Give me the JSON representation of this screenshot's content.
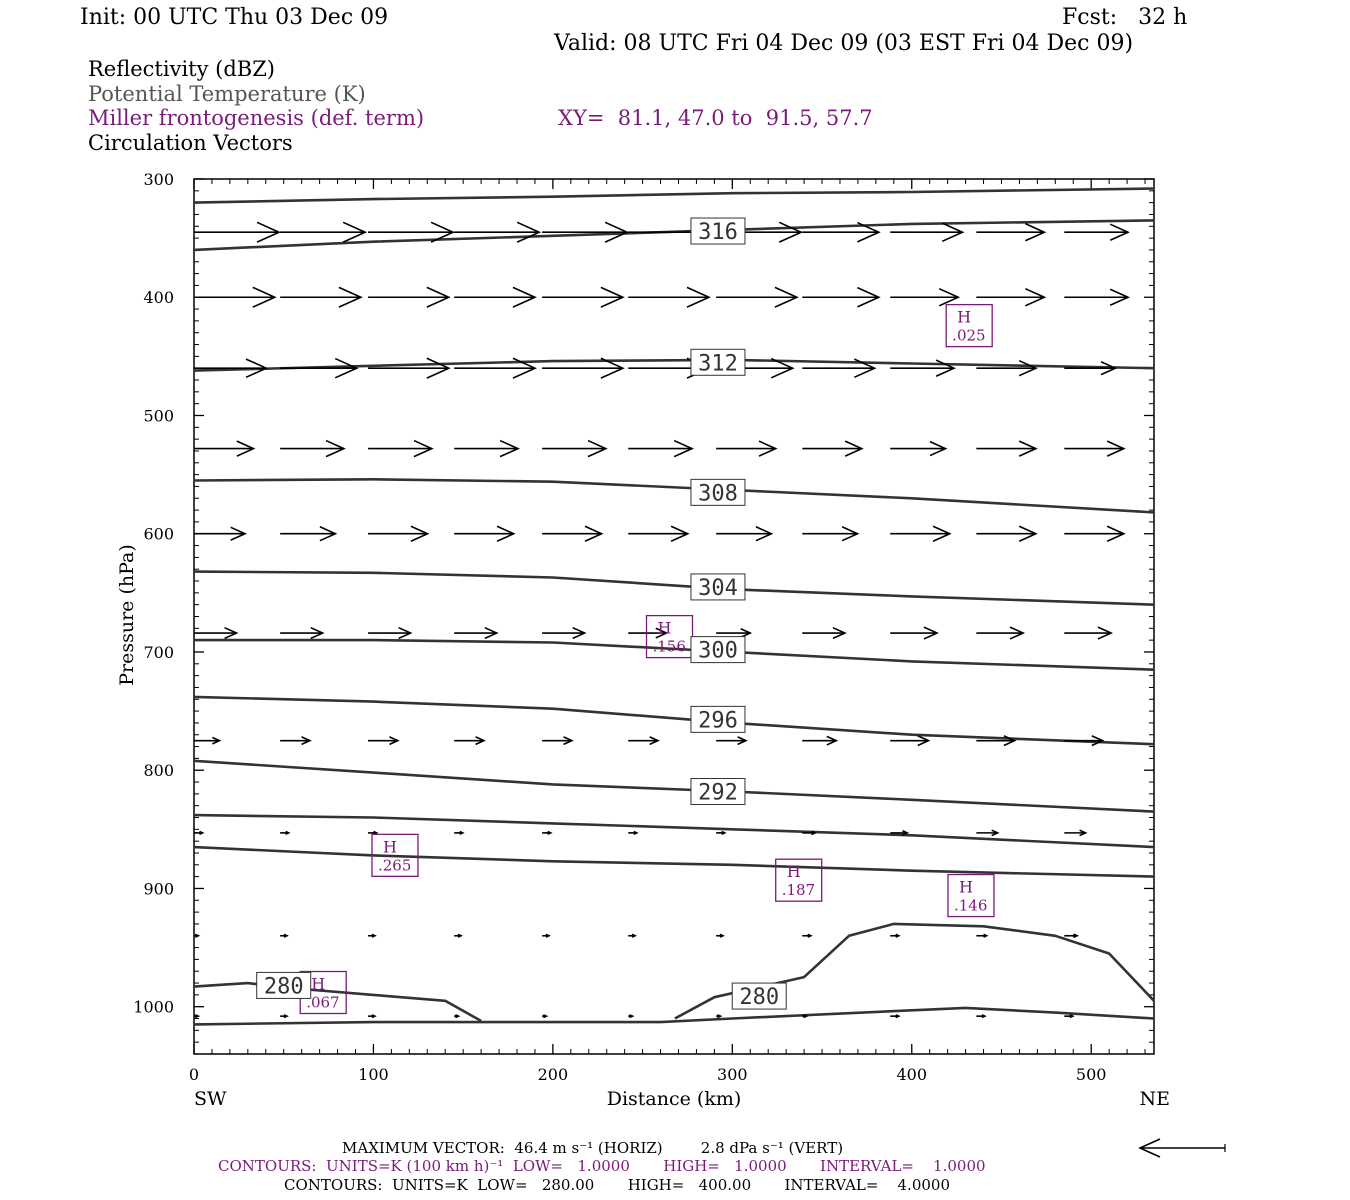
{
  "header": {
    "init": "Init: 00 UTC Thu 03 Dec 09",
    "fcst": "Fcst:   32 h",
    "valid": "Valid: 08 UTC Fri 04 Dec 09 (03 EST Fri 04 Dec 09)"
  },
  "legend": {
    "reflectivity": "Reflectivity (dBZ)",
    "theta": "Potential Temperature (K)",
    "frontogenesis": "Miller frontogenesis (def. term)",
    "xy": "XY=  81.1, 47.0 to  91.5, 57.7",
    "vectors": "Circulation Vectors"
  },
  "colors": {
    "frontogenesis": "#7a1a7a",
    "theta": "#333333",
    "vectors": "#000000"
  },
  "footer": {
    "maxvec": "MAXIMUM VECTOR:  46.4 m s⁻¹ (HORIZ)        2.8 dPa s⁻¹ (VERT)",
    "contours1": "CONTOURS:  UNITS=K (100 km h)⁻¹  LOW=   1.0000       HIGH=   1.0000       INTERVAL=    1.0000",
    "contours2": "CONTOURS:  UNITS=K  LOW=   280.00       HIGH=   400.00       INTERVAL=    4.0000"
  },
  "chart_data": {
    "type": "line",
    "xlabel": "Distance (km)",
    "ylabel": "Pressure (hPa)",
    "xlim": [
      0,
      535
    ],
    "ylim": [
      1040,
      300
    ],
    "xticks": [
      0,
      100,
      200,
      300,
      400,
      500
    ],
    "yticks": [
      300,
      400,
      500,
      600,
      700,
      800,
      900,
      1000
    ],
    "x_ends": [
      "SW",
      "NE"
    ],
    "theta_contours": [
      {
        "level": "",
        "pts": [
          [
            0,
            320
          ],
          [
            100,
            317
          ],
          [
            200,
            315
          ],
          [
            300,
            312
          ],
          [
            400,
            311
          ],
          [
            535,
            308
          ]
        ]
      },
      {
        "level": "316",
        "label_at": [
          292,
          344
        ],
        "pts": [
          [
            0,
            360
          ],
          [
            100,
            353
          ],
          [
            200,
            348
          ],
          [
            300,
            343
          ],
          [
            400,
            338
          ],
          [
            535,
            335
          ]
        ]
      },
      {
        "level": "312",
        "label_at": [
          292,
          455
        ],
        "pts": [
          [
            0,
            462
          ],
          [
            100,
            458
          ],
          [
            200,
            454
          ],
          [
            300,
            453
          ],
          [
            400,
            456
          ],
          [
            535,
            460
          ]
        ]
      },
      {
        "level": "308",
        "label_at": [
          292,
          565
        ],
        "pts": [
          [
            0,
            555
          ],
          [
            100,
            554
          ],
          [
            200,
            556
          ],
          [
            300,
            563
          ],
          [
            400,
            570
          ],
          [
            535,
            582
          ]
        ]
      },
      {
        "level": "304",
        "label_at": [
          292,
          645
        ],
        "pts": [
          [
            0,
            632
          ],
          [
            100,
            633
          ],
          [
            200,
            637
          ],
          [
            300,
            647
          ],
          [
            400,
            653
          ],
          [
            535,
            660
          ]
        ]
      },
      {
        "level": "300",
        "label_at": [
          292,
          698
        ],
        "pts": [
          [
            0,
            690
          ],
          [
            100,
            690
          ],
          [
            200,
            692
          ],
          [
            300,
            700
          ],
          [
            400,
            708
          ],
          [
            535,
            715
          ]
        ]
      },
      {
        "level": "296",
        "label_at": [
          292,
          757
        ],
        "pts": [
          [
            0,
            738
          ],
          [
            100,
            742
          ],
          [
            200,
            748
          ],
          [
            300,
            760
          ],
          [
            400,
            770
          ],
          [
            535,
            778
          ]
        ]
      },
      {
        "level": "292",
        "label_at": [
          292,
          818
        ],
        "pts": [
          [
            0,
            792
          ],
          [
            100,
            802
          ],
          [
            200,
            812
          ],
          [
            300,
            818
          ],
          [
            400,
            825
          ],
          [
            535,
            835
          ]
        ]
      },
      {
        "level": "",
        "pts": [
          [
            0,
            838
          ],
          [
            100,
            840
          ],
          [
            200,
            845
          ],
          [
            300,
            850
          ],
          [
            400,
            855
          ],
          [
            535,
            865
          ]
        ]
      },
      {
        "level": "",
        "pts": [
          [
            0,
            865
          ],
          [
            100,
            872
          ],
          [
            200,
            877
          ],
          [
            300,
            880
          ],
          [
            400,
            885
          ],
          [
            535,
            890
          ]
        ]
      },
      {
        "level": "280",
        "label_at": [
          50,
          982
        ],
        "pts": [
          [
            0,
            983
          ],
          [
            30,
            980
          ],
          [
            60,
            985
          ],
          [
            100,
            990
          ],
          [
            140,
            995
          ],
          [
            160,
            1012
          ]
        ]
      },
      {
        "level": "280",
        "label_at": [
          315,
          991
        ],
        "pts": [
          [
            268,
            1010
          ],
          [
            290,
            992
          ],
          [
            340,
            975
          ],
          [
            365,
            940
          ],
          [
            390,
            930
          ],
          [
            440,
            932
          ],
          [
            480,
            940
          ],
          [
            510,
            955
          ],
          [
            535,
            995
          ]
        ]
      },
      {
        "level": "",
        "pts": [
          [
            0,
            1015
          ],
          [
            100,
            1013
          ],
          [
            200,
            1013
          ],
          [
            260,
            1013
          ],
          [
            300,
            1010
          ],
          [
            400,
            1003
          ],
          [
            430,
            1001
          ],
          [
            480,
            1005
          ],
          [
            535,
            1010
          ]
        ]
      }
    ],
    "frontogenesis_maxima": [
      {
        "label": "H",
        "value": ".025",
        "x": 432,
        "y": 424
      },
      {
        "label": "H",
        "value": ".156",
        "x": 265,
        "y": 687
      },
      {
        "label": "H",
        "value": ".265",
        "x": 112,
        "y": 872
      },
      {
        "label": "H",
        "value": ".187",
        "x": 337,
        "y": 893
      },
      {
        "label": "H",
        "value": ".146",
        "x": 433,
        "y": 906
      },
      {
        "label": "H",
        "value": ".067",
        "x": 72,
        "y": 988
      }
    ],
    "vector_rows": [
      {
        "p": 345,
        "u": [
          1,
          1,
          1,
          1,
          1,
          1,
          1,
          0.9,
          0.85,
          0.8,
          0.75
        ],
        "w": [
          0,
          0,
          0,
          0,
          0,
          0,
          0,
          0,
          0,
          0,
          0
        ]
      },
      {
        "p": 400,
        "u": [
          0.95,
          0.95,
          0.95,
          0.95,
          0.95,
          0.95,
          0.95,
          0.9,
          0.8,
          0.8,
          0.75
        ],
        "w": [
          0,
          0,
          0,
          0,
          0,
          0,
          0,
          0,
          0,
          0,
          0
        ]
      },
      {
        "p": 460,
        "u": [
          0.85,
          0.9,
          0.95,
          0.95,
          0.95,
          0.95,
          0.9,
          0.85,
          0.75,
          0.7,
          0.6
        ],
        "w": [
          0,
          0,
          0,
          0,
          0,
          0,
          0,
          0,
          0,
          0,
          0
        ]
      },
      {
        "p": 528,
        "u": [
          0.7,
          0.75,
          0.75,
          0.75,
          0.75,
          0.75,
          0.7,
          0.7,
          0.65,
          0.7,
          0.7
        ],
        "w": [
          0,
          0,
          0,
          0,
          0,
          0,
          0,
          0,
          0,
          0,
          0
        ]
      },
      {
        "p": 600,
        "u": [
          0.6,
          0.65,
          0.7,
          0.7,
          0.7,
          0.7,
          0.65,
          0.65,
          0.7,
          0.7,
          0.7
        ],
        "w": [
          0,
          0,
          0,
          0,
          0,
          0,
          0,
          0,
          0,
          0,
          0
        ]
      },
      {
        "p": 684,
        "u": [
          0.5,
          0.5,
          0.5,
          0.5,
          0.5,
          0.45,
          0.4,
          0.5,
          0.55,
          0.55,
          0.55
        ],
        "w": [
          0,
          0,
          0,
          0,
          0,
          0,
          0,
          0,
          0,
          0,
          0
        ]
      },
      {
        "p": 775,
        "u": [
          0.3,
          0.35,
          0.35,
          0.35,
          0.35,
          0.35,
          0.35,
          0.4,
          0.45,
          0.45,
          0.45
        ],
        "w": [
          0,
          0,
          0,
          0,
          0,
          0,
          0,
          0,
          0,
          0,
          0
        ]
      },
      {
        "p": 853,
        "u": [
          0.1,
          0.1,
          0.1,
          0.1,
          0.1,
          0.1,
          0.1,
          0.15,
          0.2,
          0.25,
          0.25
        ],
        "w": [
          0,
          0,
          0,
          0,
          0,
          0,
          0,
          0,
          0,
          0,
          0
        ]
      },
      {
        "p": 940,
        "u": [
          0.05,
          0.08,
          0.08,
          0.08,
          0.08,
          0.08,
          0.08,
          0.1,
          0.1,
          0.12,
          0.15
        ],
        "w": [
          0,
          0,
          0,
          0,
          0,
          0,
          0,
          0,
          0,
          0,
          0
        ]
      },
      {
        "p": 1008,
        "u": [
          0.05,
          0.08,
          0.08,
          0.05,
          0.05,
          0.05,
          0.05,
          0.05,
          0.1,
          0.1,
          0.1
        ],
        "w": [
          0,
          0,
          0,
          0,
          0,
          0,
          0,
          0,
          0,
          0,
          0
        ]
      }
    ],
    "vector_x": [
      0,
      48,
      97,
      145,
      194,
      242,
      291,
      339,
      388,
      436,
      485
    ]
  }
}
